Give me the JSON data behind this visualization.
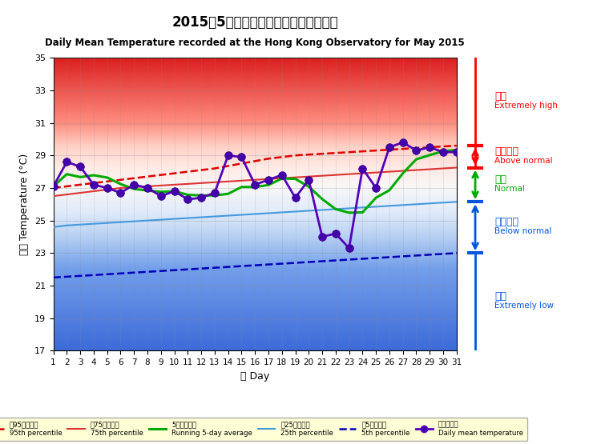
{
  "title_chinese": "2015年5月香港天文台錄得的日平均氣溫",
  "title_english": "Daily Mean Temperature recorded at the Hong Kong Observatory for May 2015",
  "xlabel_chinese": "日 Day",
  "ylabel_chinese": "氣溫 Temperature (°C)",
  "days": [
    1,
    2,
    3,
    4,
    5,
    6,
    7,
    8,
    9,
    10,
    11,
    12,
    13,
    14,
    15,
    16,
    17,
    18,
    19,
    20,
    21,
    22,
    23,
    24,
    25,
    26,
    27,
    28,
    29,
    30,
    31
  ],
  "daily_mean": [
    27.1,
    28.6,
    28.3,
    27.2,
    27.0,
    26.7,
    27.2,
    27.0,
    26.5,
    26.8,
    26.3,
    26.4,
    26.7,
    29.0,
    28.9,
    27.2,
    27.5,
    27.8,
    26.4,
    27.5,
    24.0,
    24.2,
    23.3,
    28.2,
    27.0,
    29.5,
    29.8,
    29.3,
    29.5,
    29.2,
    29.2
  ],
  "running_5day": [
    27.1,
    27.85,
    27.67,
    27.78,
    27.64,
    27.24,
    26.94,
    26.84,
    26.76,
    26.8,
    26.58,
    26.54,
    26.54,
    26.64,
    27.06,
    27.06,
    27.18,
    27.58,
    27.56,
    27.08,
    26.32,
    25.7,
    25.48,
    25.5,
    26.4,
    26.86,
    27.9,
    28.76,
    29.02,
    29.26,
    29.34
  ],
  "p95": [
    27.0,
    27.1,
    27.2,
    27.3,
    27.4,
    27.5,
    27.6,
    27.7,
    27.8,
    27.9,
    28.0,
    28.1,
    28.2,
    28.35,
    28.5,
    28.65,
    28.8,
    28.9,
    29.0,
    29.05,
    29.1,
    29.15,
    29.2,
    29.25,
    29.3,
    29.35,
    29.4,
    29.45,
    29.5,
    29.55,
    29.6
  ],
  "p75": [
    26.5,
    26.6,
    26.7,
    26.8,
    26.9,
    27.0,
    27.05,
    27.1,
    27.15,
    27.2,
    27.25,
    27.3,
    27.35,
    27.4,
    27.45,
    27.5,
    27.55,
    27.6,
    27.65,
    27.7,
    27.75,
    27.8,
    27.85,
    27.9,
    27.95,
    28.0,
    28.05,
    28.1,
    28.15,
    28.2,
    28.25
  ],
  "p25": [
    24.6,
    24.7,
    24.75,
    24.8,
    24.85,
    24.9,
    24.95,
    25.0,
    25.05,
    25.1,
    25.15,
    25.2,
    25.25,
    25.3,
    25.35,
    25.4,
    25.45,
    25.5,
    25.55,
    25.6,
    25.65,
    25.7,
    25.75,
    25.8,
    25.85,
    25.9,
    25.95,
    26.0,
    26.05,
    26.1,
    26.15
  ],
  "p5": [
    21.5,
    21.55,
    21.6,
    21.65,
    21.7,
    21.75,
    21.8,
    21.85,
    21.9,
    21.95,
    22.0,
    22.05,
    22.1,
    22.15,
    22.2,
    22.25,
    22.3,
    22.35,
    22.4,
    22.45,
    22.5,
    22.55,
    22.6,
    22.65,
    22.7,
    22.75,
    22.8,
    22.85,
    22.9,
    22.95,
    23.0
  ],
  "ylim": [
    17,
    35
  ],
  "yticks": [
    17,
    19,
    21,
    23,
    25,
    27,
    29,
    31,
    33,
    35
  ],
  "legend_label_p95_zh": "神95百分位數",
  "legend_label_p95_en": "95th percentile",
  "legend_label_p75_zh": "神75百分位數",
  "legend_label_p75_en": "75th percentile",
  "legend_label_run_zh": "5天移動平均",
  "legend_label_run_en": "Running 5-day average",
  "legend_label_p25_zh": "神25百分位數",
  "legend_label_p25_en": "25th percentile",
  "legend_label_p5_zh": "神5百分位數",
  "legend_label_p5_en": "5th percentile",
  "legend_label_daily_zh": "日平均氣溫",
  "legend_label_daily_en": "Daily mean temperature",
  "right_exhigh_zh": "極高",
  "right_exhigh_en": "Extremely high",
  "right_abn_zh": "高於正常",
  "right_abn_en": "Above normal",
  "right_norm_zh": "正常",
  "right_norm_en": "Normal",
  "right_below_zh": "低於正常",
  "right_below_en": "Below normal",
  "right_exlow_zh": "極低",
  "right_exlow_en": "Extremely low"
}
